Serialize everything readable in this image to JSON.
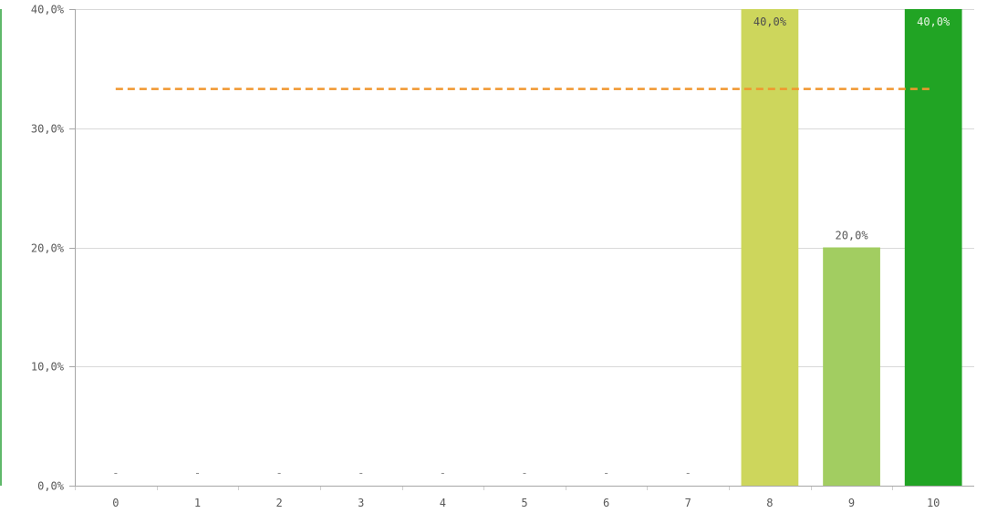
{
  "chart_data": {
    "type": "bar",
    "categories": [
      "0",
      "1",
      "2",
      "3",
      "4",
      "5",
      "6",
      "7",
      "8",
      "9",
      "10"
    ],
    "values": [
      0,
      0,
      0,
      0,
      0,
      0,
      0,
      0,
      40.0,
      20.0,
      40.0
    ],
    "value_labels": [
      "-",
      "-",
      "-",
      "-",
      "-",
      "-",
      "-",
      "-",
      "40,0%",
      "20,0%",
      "40,0%"
    ],
    "bar_colors": [
      "#cbd65a",
      "#cbd65a",
      "#cbd65a",
      "#cbd65a",
      "#cbd65a",
      "#cbd65a",
      "#cbd65a",
      "#cbd65a",
      "#cdd65c",
      "#a2cd61",
      "#21a424"
    ],
    "reference_line": {
      "value": 33.3,
      "color": "#f0962e",
      "style": "dashed"
    },
    "y_ticks": [
      {
        "value": 0,
        "label": "0,0%"
      },
      {
        "value": 10,
        "label": "10,0%"
      },
      {
        "value": 20,
        "label": "20,0%"
      },
      {
        "value": 30,
        "label": "30,0%"
      },
      {
        "value": 40,
        "label": "40,0%"
      }
    ],
    "ylim": [
      0,
      40
    ],
    "title": "",
    "xlabel": "",
    "ylabel": "",
    "grid": true,
    "legend": "none"
  }
}
